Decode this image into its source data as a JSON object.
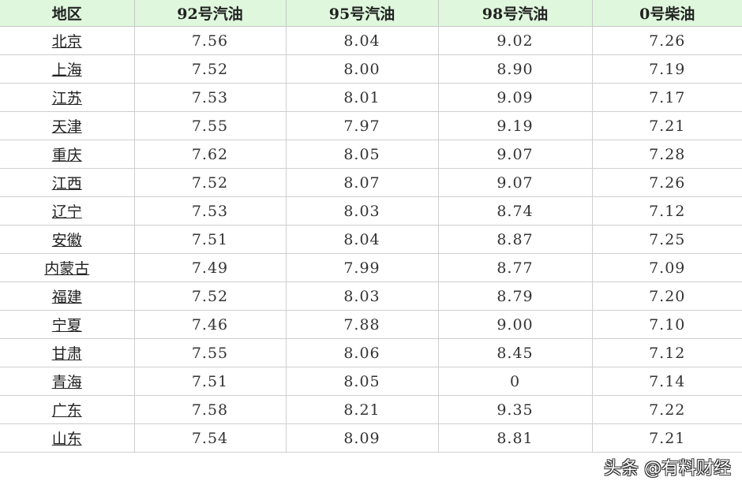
{
  "table": {
    "headers": [
      "地区",
      "92号汽油",
      "95号汽油",
      "98号汽油",
      "0号柴油"
    ],
    "rows": [
      [
        "北京",
        "7.56",
        "8.04",
        "9.02",
        "7.26"
      ],
      [
        "上海",
        "7.52",
        "8.00",
        "8.90",
        "7.19"
      ],
      [
        "江苏",
        "7.53",
        "8.01",
        "9.09",
        "7.17"
      ],
      [
        "天津",
        "7.55",
        "7.97",
        "9.19",
        "7.21"
      ],
      [
        "重庆",
        "7.62",
        "8.05",
        "9.07",
        "7.28"
      ],
      [
        "江西",
        "7.52",
        "8.07",
        "9.07",
        "7.26"
      ],
      [
        "辽宁",
        "7.53",
        "8.03",
        "8.74",
        "7.12"
      ],
      [
        "安徽",
        "7.51",
        "8.04",
        "8.87",
        "7.25"
      ],
      [
        "内蒙古",
        "7.49",
        "7.99",
        "8.77",
        "7.09"
      ],
      [
        "福建",
        "7.52",
        "8.03",
        "8.79",
        "7.20"
      ],
      [
        "宁夏",
        "7.46",
        "7.88",
        "9.00",
        "7.10"
      ],
      [
        "甘肃",
        "7.55",
        "8.06",
        "8.45",
        "7.12"
      ],
      [
        "青海",
        "7.51",
        "8.05",
        "0",
        "7.14"
      ],
      [
        "广东",
        "7.58",
        "8.21",
        "9.35",
        "7.22"
      ],
      [
        "山东",
        "7.54",
        "8.09",
        "8.81",
        "7.21"
      ]
    ]
  },
  "watermark": "头条 @有料财经",
  "colors": {
    "header_bg": "#dff7dd",
    "grid": "#cfcfcf"
  }
}
